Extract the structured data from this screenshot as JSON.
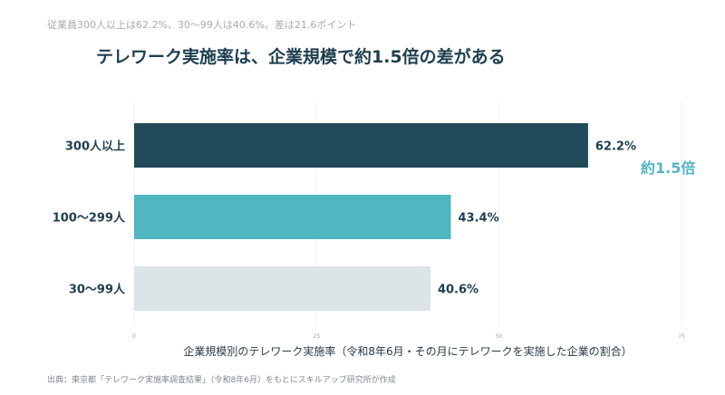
{
  "subtitle": "従業員300人以上は62.2%、30〜99人は40.6%。差は21.6ポイント",
  "title": "テレワーク実施率は、企業規模で約1.5倍の差がある",
  "source": "出典：東京都「テレワーク実施率調査結果」（令和8年6月）をもとにスキルアップ研究所が作成",
  "colors": {
    "bar_large": "#214a5a",
    "bar_mid": "#4fb6c2",
    "bar_small": "#dbe4e7",
    "label": "#1f3f4f",
    "accent": "#4fb6c2"
  },
  "chart_data": {
    "type": "bar",
    "orientation": "horizontal",
    "categories": [
      "300人以上",
      "100〜299人",
      "30〜99人"
    ],
    "values": [
      62.2,
      43.4,
      40.6
    ],
    "value_labels": [
      "62.2%",
      "43.4%",
      "40.6%"
    ],
    "xlabel": "企業規模別のテレワーク実施率（令和8年6月・その月にテレワークを実施した企業の割合）",
    "xlim": [
      0,
      75
    ],
    "xticks": [
      0,
      25,
      50,
      75
    ],
    "grid": true,
    "annotation": "約1.5倍"
  }
}
